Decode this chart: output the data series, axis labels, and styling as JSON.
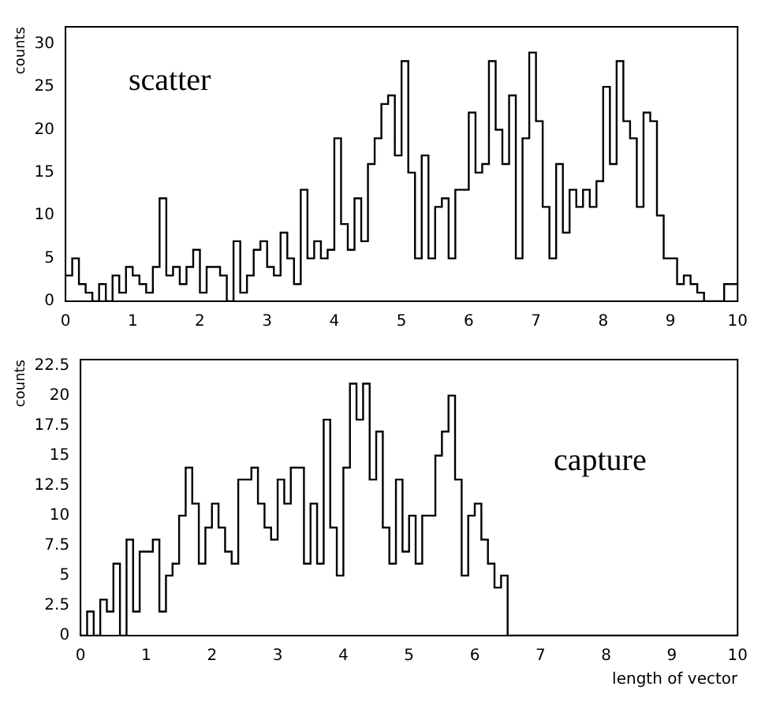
{
  "chart_data": [
    {
      "type": "histogram",
      "ylabel": "counts",
      "annotations": [
        "scatter"
      ],
      "grid": false,
      "xlim": [
        0,
        10
      ],
      "xticks": [
        0,
        1,
        2,
        3,
        4,
        5,
        6,
        7,
        8,
        9,
        10
      ],
      "ylim": [
        0,
        32
      ],
      "yticks": [
        0,
        5,
        10,
        15,
        20,
        25,
        30
      ],
      "color": "#000000",
      "bins": [
        0,
        0.1,
        0.2,
        0.3,
        0.4,
        0.5,
        0.6,
        0.7,
        0.8,
        0.9,
        1,
        1.1,
        1.2,
        1.3,
        1.4,
        1.5,
        1.6,
        1.7,
        1.8,
        1.9,
        2,
        2.1,
        2.2,
        2.3,
        2.4,
        2.5,
        2.6,
        2.7,
        2.8,
        2.9,
        3,
        3.1,
        3.2,
        3.3,
        3.4,
        3.5,
        3.6,
        3.7,
        3.8,
        3.9,
        4,
        4.1,
        4.2,
        4.3,
        4.4,
        4.5,
        4.6,
        4.7,
        4.8,
        4.9,
        5,
        5.1,
        5.2,
        5.3,
        5.4,
        5.5,
        5.6,
        5.7,
        5.8,
        5.9,
        6,
        6.1,
        6.2,
        6.3,
        6.4,
        6.5,
        6.6,
        6.7,
        6.8,
        6.9,
        7,
        7.1,
        7.2,
        7.3,
        7.4,
        7.5,
        7.6,
        7.7,
        7.8,
        7.9,
        8,
        8.1,
        8.2,
        8.3,
        8.4,
        8.5,
        8.6,
        8.7,
        8.8,
        8.9,
        9,
        9.1,
        9.2,
        9.3,
        9.4,
        9.5,
        9.6,
        9.7,
        9.8,
        9.9,
        10
      ],
      "values": [
        3,
        5,
        2,
        1,
        0,
        2,
        0,
        3,
        1,
        4,
        3,
        2,
        1,
        4,
        12,
        3,
        4,
        2,
        4,
        6,
        1,
        4,
        4,
        3,
        0,
        7,
        1,
        3,
        6,
        7,
        4,
        3,
        8,
        5,
        2,
        13,
        5,
        7,
        5,
        6,
        19,
        9,
        6,
        12,
        7,
        16,
        19,
        23,
        24,
        17,
        28,
        15,
        5,
        17,
        5,
        11,
        12,
        5,
        13,
        13,
        22,
        15,
        16,
        28,
        20,
        16,
        24,
        5,
        19,
        29,
        21,
        11,
        5,
        16,
        8,
        13,
        11,
        13,
        11,
        14,
        25,
        16,
        28,
        21,
        19,
        11,
        22,
        21,
        10,
        5,
        5,
        2,
        3,
        2,
        1,
        0,
        0,
        0,
        2,
        2
      ]
    },
    {
      "type": "histogram",
      "ylabel": "counts",
      "xlabel": "length of vector",
      "annotations": [
        "capture"
      ],
      "grid": false,
      "xlim": [
        0,
        10
      ],
      "xticks": [
        0,
        1,
        2,
        3,
        4,
        5,
        6,
        7,
        8,
        9,
        10
      ],
      "ylim": [
        0,
        23
      ],
      "yticks": [
        0,
        2.5,
        5,
        7.5,
        10,
        12.5,
        15,
        17.5,
        20,
        22.5
      ],
      "color": "#000000",
      "bins": [
        0,
        0.1,
        0.2,
        0.3,
        0.4,
        0.5,
        0.6,
        0.7,
        0.8,
        0.9,
        1,
        1.1,
        1.2,
        1.3,
        1.4,
        1.5,
        1.6,
        1.7,
        1.8,
        1.9,
        2,
        2.1,
        2.2,
        2.3,
        2.4,
        2.5,
        2.6,
        2.7,
        2.8,
        2.9,
        3,
        3.1,
        3.2,
        3.3,
        3.4,
        3.5,
        3.6,
        3.7,
        3.8,
        3.9,
        4,
        4.1,
        4.2,
        4.3,
        4.4,
        4.5,
        4.6,
        4.7,
        4.8,
        4.9,
        5,
        5.1,
        5.2,
        5.3,
        5.4,
        5.5,
        5.6,
        5.7,
        5.8,
        5.9,
        6,
        6.1,
        6.2,
        6.3,
        6.4,
        6.5,
        6.6,
        6.7,
        6.8,
        6.9,
        7,
        7.1,
        7.2,
        7.3,
        7.4,
        7.5,
        7.6,
        7.7,
        7.8,
        7.9,
        8,
        8.1,
        8.2,
        8.3,
        8.4,
        8.5,
        8.6,
        8.7,
        8.8,
        8.9,
        9,
        9.1,
        9.2,
        9.3,
        9.4,
        9.5,
        9.6,
        9.7,
        9.8,
        9.9,
        10
      ],
      "values": [
        0,
        2,
        0,
        3,
        2,
        6,
        0,
        8,
        2,
        7,
        7,
        8,
        2,
        5,
        6,
        10,
        14,
        11,
        6,
        9,
        11,
        9,
        7,
        6,
        13,
        13,
        14,
        11,
        9,
        8,
        13,
        11,
        14,
        14,
        6,
        11,
        6,
        18,
        9,
        5,
        14,
        21,
        18,
        21,
        13,
        17,
        9,
        6,
        13,
        7,
        10,
        6,
        10,
        10,
        15,
        17,
        20,
        13,
        5,
        10,
        11,
        8,
        6,
        4,
        5,
        0,
        0,
        0,
        0,
        0,
        0,
        0,
        0,
        0,
        0,
        0,
        0,
        0,
        0,
        0,
        0,
        0,
        0,
        0,
        0,
        0,
        0,
        0,
        0,
        0,
        0,
        0,
        0,
        0,
        0,
        0,
        0,
        0,
        0,
        0
      ]
    }
  ]
}
